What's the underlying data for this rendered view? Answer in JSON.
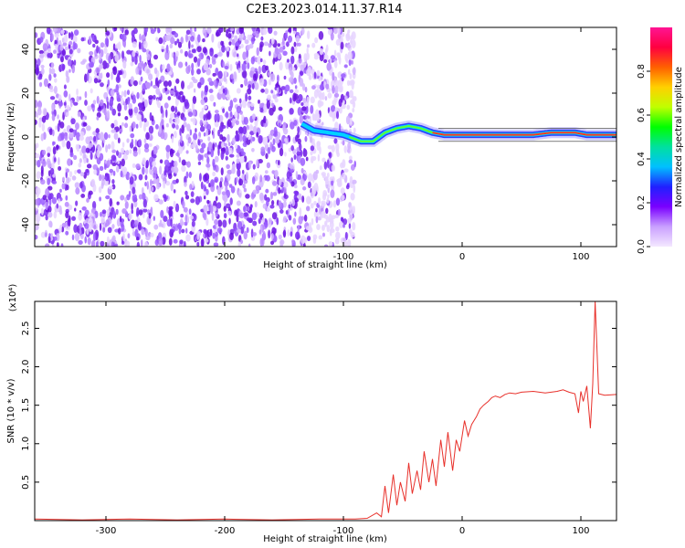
{
  "title": "C2E3.2023.014.11.37.R14",
  "colors": {
    "snr_line": "#e8302a",
    "noise_speckle": "#8a2be2",
    "colorbar_stops": [
      "#f4e8ff",
      "#c9a0ff",
      "#7a00ff",
      "#2020ff",
      "#00c0ff",
      "#00e0a0",
      "#00ff00",
      "#c0ff00",
      "#ffd000",
      "#ff6000",
      "#ff0040",
      "#ff1493"
    ]
  },
  "chart_data": [
    {
      "type": "heatmap",
      "title": "",
      "xlabel": "Height of straight line (km)",
      "ylabel": "Frequency (Hz)",
      "xlim": [
        -360,
        130
      ],
      "ylim": [
        -50,
        50
      ],
      "xticks": [
        -300,
        -200,
        -100,
        0,
        100
      ],
      "yticks": [
        -40,
        -20,
        0,
        20,
        40
      ],
      "grid": false,
      "colorbar": {
        "label": "Normalized spectral amplitude",
        "range": [
          0.0,
          1.0
        ],
        "ticks": [
          "0.0",
          "0.2",
          "0.4",
          "0.6",
          "0.8"
        ],
        "tick_values": [
          0.0,
          0.2,
          0.4,
          0.6,
          0.8
        ]
      },
      "noise_region": {
        "x_range": [
          -360,
          -90
        ],
        "freq_range": [
          -50,
          50
        ]
      },
      "signal_track": {
        "x": [
          -135,
          -125,
          -100,
          -90,
          -85,
          -75,
          -65,
          -55,
          -45,
          -35,
          -25,
          -15,
          -5,
          0,
          20,
          40,
          60,
          75,
          85,
          95,
          105,
          110,
          130
        ],
        "freq": [
          6,
          3,
          1,
          -1,
          -2,
          -2,
          2,
          4,
          5,
          4,
          2,
          1,
          1,
          1,
          1,
          1,
          1,
          2,
          2,
          2,
          1,
          1,
          1
        ]
      }
    },
    {
      "type": "line",
      "title": "",
      "xlabel": "Height of straight line (km)",
      "ylabel": "SNR (10 * v/v)",
      "scale_label": "(x10⁴)",
      "xlim": [
        -360,
        130
      ],
      "ylim": [
        0.0,
        2.85
      ],
      "xticks": [
        -300,
        -200,
        -100,
        0,
        100
      ],
      "yticks": [
        "0.5",
        "1.0",
        "1.5",
        "2.0",
        "2.5"
      ],
      "ytick_values": [
        0.5,
        1.0,
        1.5,
        2.0,
        2.5
      ],
      "grid": false,
      "series": [
        {
          "x": [
            -360,
            -320,
            -280,
            -240,
            -200,
            -160,
            -120,
            -90,
            -80,
            -72,
            -68,
            -65,
            -62,
            -58,
            -55,
            -52,
            -48,
            -45,
            -42,
            -38,
            -35,
            -32,
            -28,
            -25,
            -22,
            -18,
            -15,
            -12,
            -8,
            -5,
            -2,
            2,
            5,
            8,
            12,
            15,
            18,
            22,
            25,
            28,
            32,
            36,
            40,
            45,
            50,
            60,
            70,
            80,
            85,
            90,
            95,
            98,
            100,
            102,
            105,
            108,
            110,
            112,
            115,
            120,
            130
          ],
          "y": [
            0.02,
            0.01,
            0.02,
            0.01,
            0.02,
            0.01,
            0.02,
            0.02,
            0.03,
            0.1,
            0.05,
            0.45,
            0.1,
            0.6,
            0.2,
            0.5,
            0.25,
            0.75,
            0.35,
            0.65,
            0.4,
            0.9,
            0.5,
            0.8,
            0.45,
            1.05,
            0.7,
            1.15,
            0.65,
            1.05,
            0.9,
            1.3,
            1.1,
            1.25,
            1.35,
            1.45,
            1.5,
            1.55,
            1.6,
            1.62,
            1.6,
            1.64,
            1.66,
            1.65,
            1.67,
            1.68,
            1.66,
            1.68,
            1.7,
            1.67,
            1.65,
            1.4,
            1.68,
            1.55,
            1.75,
            1.2,
            1.78,
            2.85,
            1.65,
            1.63,
            1.64
          ]
        }
      ]
    }
  ]
}
